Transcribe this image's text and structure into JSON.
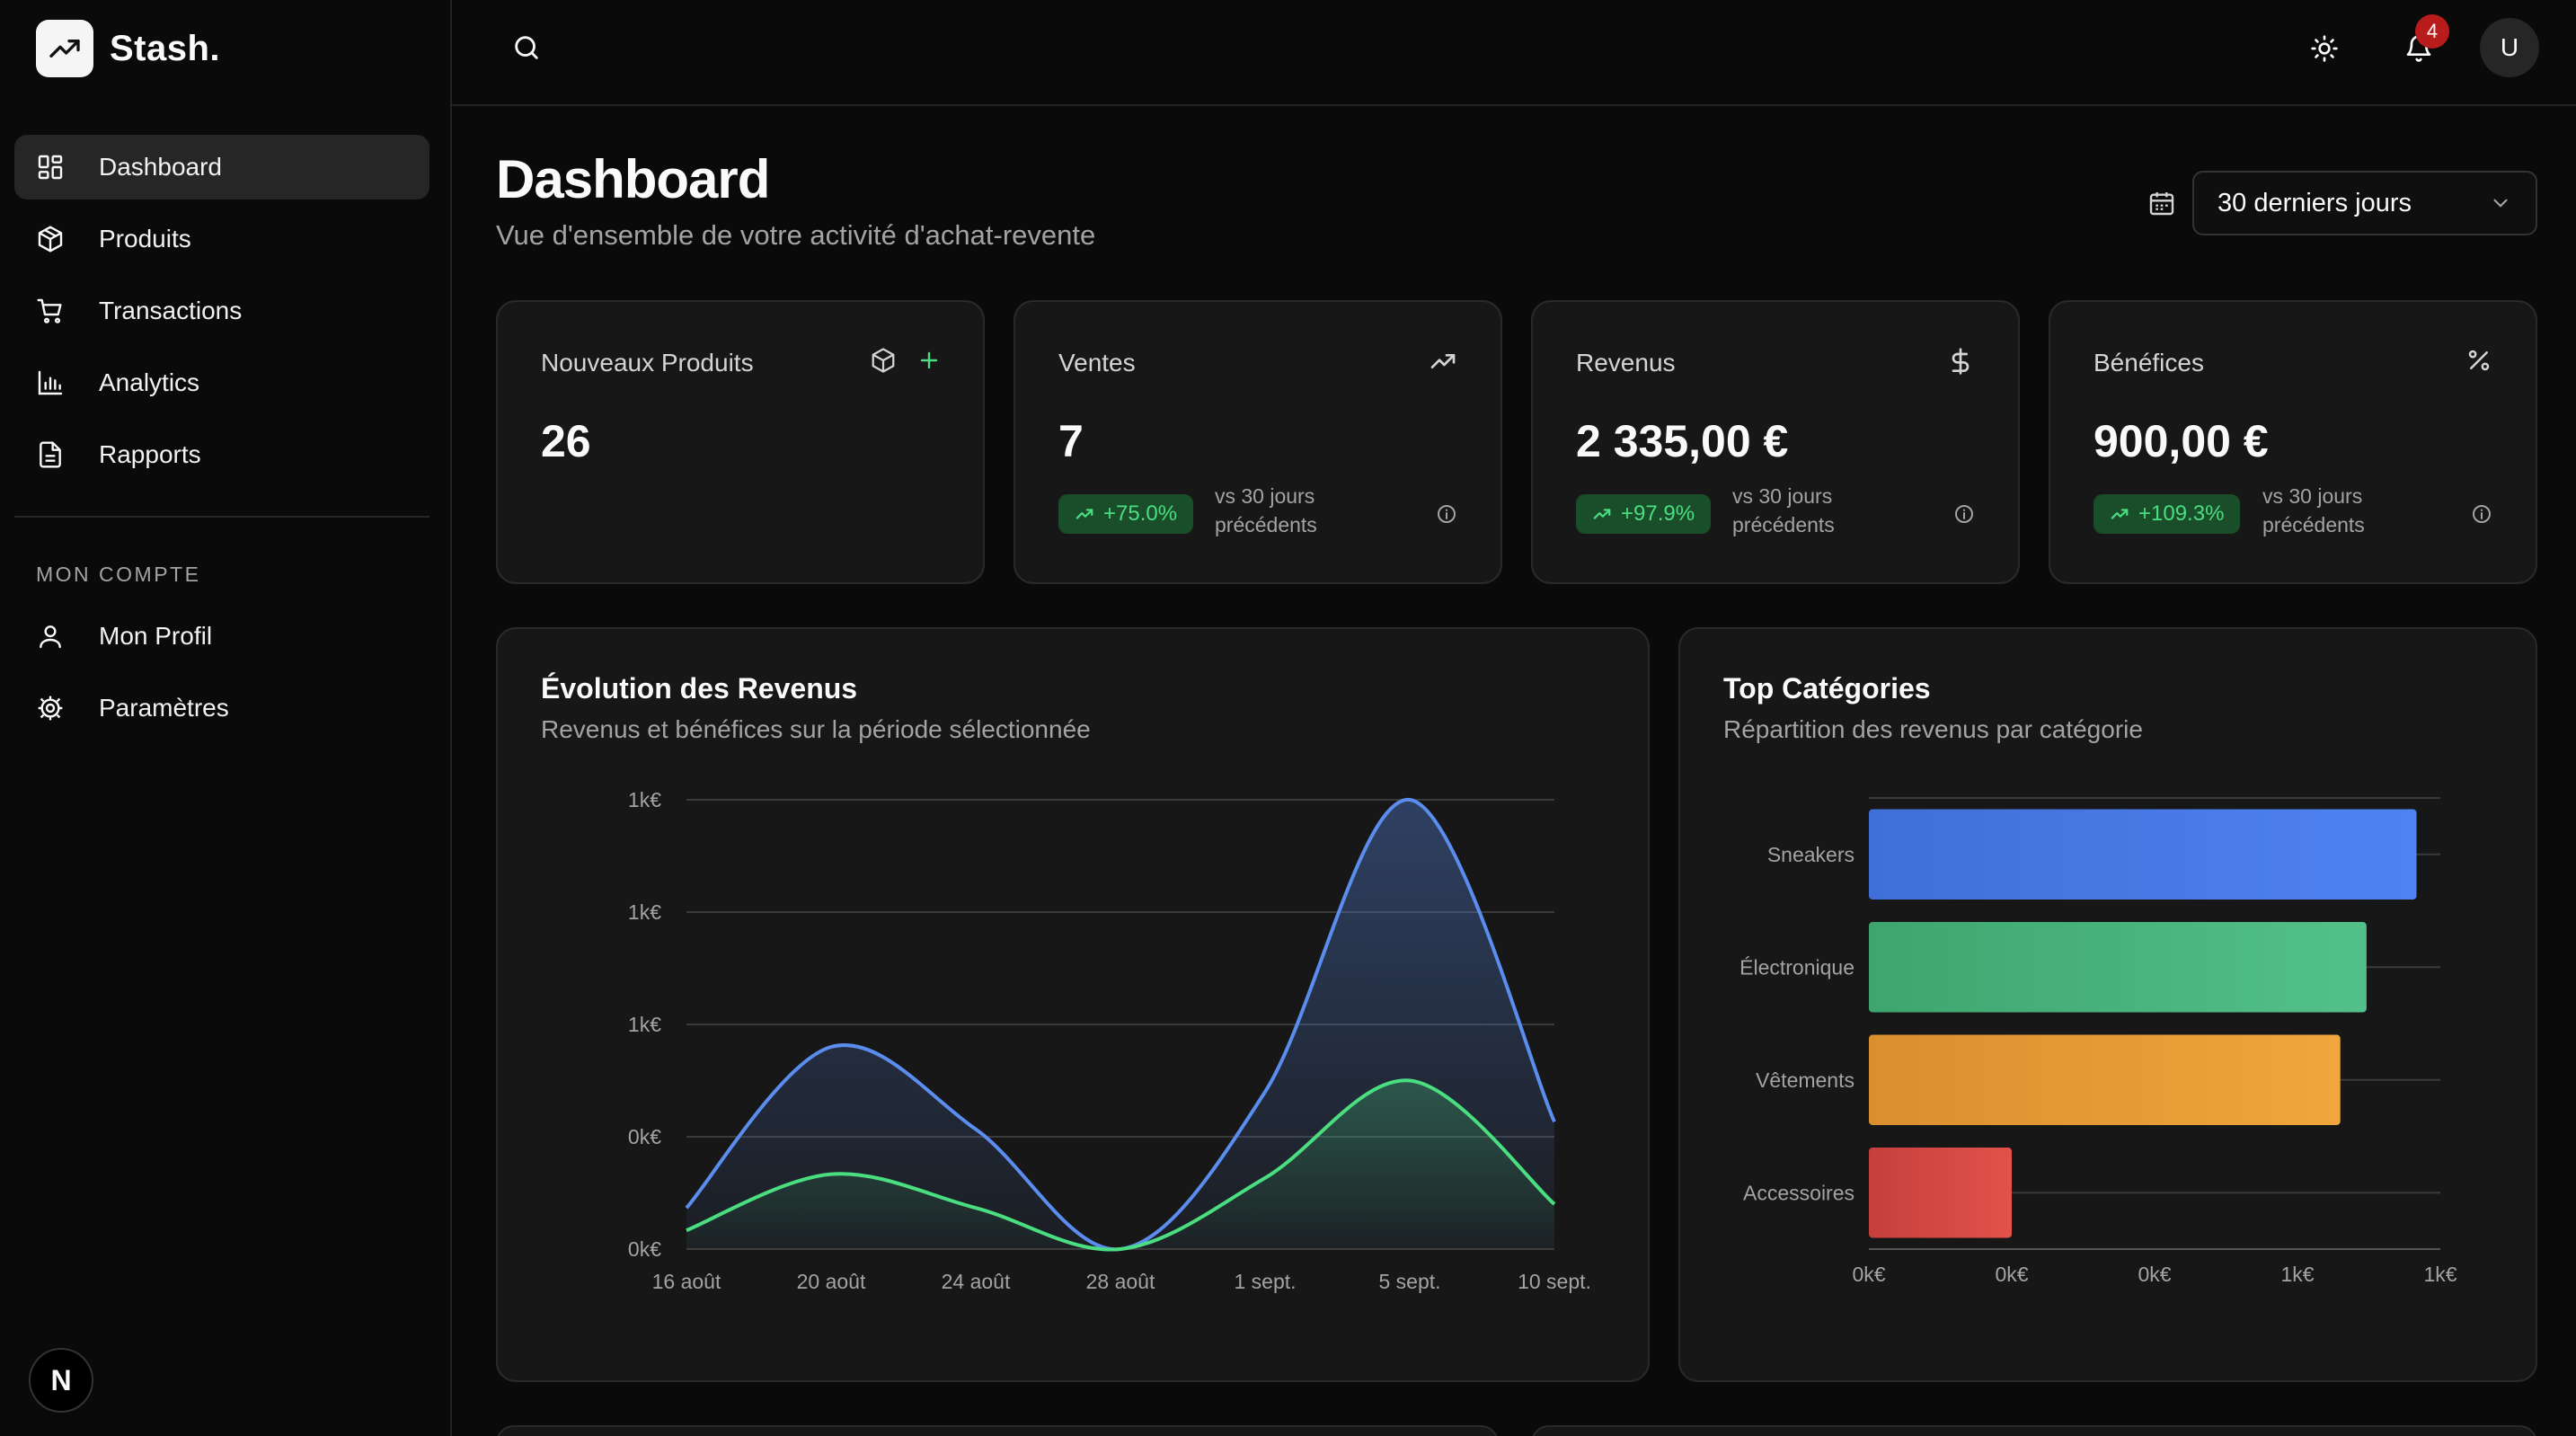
{
  "app": {
    "name": "Stash."
  },
  "sidebar": {
    "items": [
      {
        "label": "Dashboard",
        "icon": "dashboard-icon",
        "active": true
      },
      {
        "label": "Produits",
        "icon": "package-icon"
      },
      {
        "label": "Transactions",
        "icon": "cart-icon"
      },
      {
        "label": "Analytics",
        "icon": "bar-chart-icon"
      },
      {
        "label": "Rapports",
        "icon": "file-icon"
      }
    ],
    "account_title": "MON COMPTE",
    "account_items": [
      {
        "label": "Mon Profil",
        "icon": "user-icon"
      },
      {
        "label": "Paramètres",
        "icon": "settings-icon"
      }
    ],
    "footer_badge": "N"
  },
  "topbar": {
    "notifications": "4",
    "avatar": "U"
  },
  "header": {
    "title": "Dashboard",
    "subtitle": "Vue d'ensemble de votre activité d'achat-revente",
    "range": "30 derniers jours"
  },
  "kpis": [
    {
      "label": "Nouveaux Produits",
      "value": "26"
    },
    {
      "label": "Ventes",
      "value": "7",
      "trend": "+75.0%",
      "vs": "vs 30 jours précédents"
    },
    {
      "label": "Revenus",
      "value": "2 335,00 €",
      "trend": "+97.9%",
      "vs": "vs 30 jours précédents"
    },
    {
      "label": "Bénéfices",
      "value": "900,00 €",
      "trend": "+109.3%",
      "vs": "vs 30 jours précédents"
    }
  ],
  "colors": {
    "revenue": "#5b8def",
    "profit": "#4ade80",
    "trend_bg": "#1a4d2a"
  },
  "revenue_chart": {
    "title": "Évolution des Revenus",
    "subtitle": "Revenus et bénéfices sur la période sélectionnée"
  },
  "categories_chart": {
    "title": "Top Catégories",
    "subtitle": "Répartition des revenus par catégorie"
  },
  "chart_data": [
    {
      "type": "area",
      "title": "Évolution des Revenus",
      "x": [
        "16 août",
        "20 août",
        "24 août",
        "28 août",
        "1 sept.",
        "5 sept.",
        "10 sept."
      ],
      "y_tick_labels": [
        "1k€",
        "1k€",
        "1k€",
        "0k€",
        "0k€"
      ],
      "ylim": [
        0,
        1200
      ],
      "series": [
        {
          "name": "Revenus",
          "color": "#5b8def",
          "values": [
            110,
            540,
            320,
            0,
            420,
            1200,
            340
          ]
        },
        {
          "name": "Bénéfices",
          "color": "#4ade80",
          "values": [
            50,
            200,
            110,
            0,
            190,
            450,
            120
          ]
        }
      ]
    },
    {
      "type": "bar",
      "orientation": "horizontal",
      "title": "Top Catégories",
      "categories": [
        "Sneakers",
        "Électronique",
        "Vêtements",
        "Accessoires"
      ],
      "values": [
        1150,
        1045,
        990,
        300
      ],
      "colors": [
        "#4c7ef0",
        "#4cb87f",
        "#eaa23a",
        "#dc4a44"
      ],
      "x_tick_labels": [
        "0k€",
        "0k€",
        "0k€",
        "1k€",
        "1k€"
      ],
      "xlim": [
        0,
        1200
      ]
    }
  ]
}
